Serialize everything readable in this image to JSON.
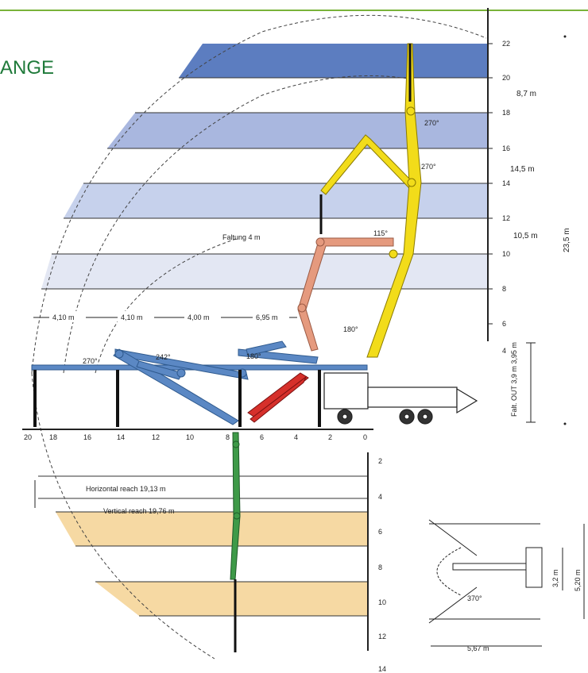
{
  "page": {
    "title": "ANGE"
  },
  "colors": {
    "accent_green_bar": "#79b33a",
    "title_green": "#1f7a3a",
    "band_dark_blue": "#5c7dc0",
    "band_mid_blue": "#a9b7df",
    "band_light_blue": "#d4dcf0",
    "band_faint": "#e6e8f2",
    "band_sand": "#f6d9a3",
    "boom_yellow": "#f2dc1a",
    "boom_salmon": "#e59a7e",
    "boom_blue": "#5b88c4",
    "boom_red": "#d6302b",
    "boom_green": "#3e9a48"
  },
  "height_axis": {
    "ticks": [
      "22",
      "20",
      "18",
      "16",
      "14",
      "12",
      "10",
      "8",
      "6",
      "4"
    ]
  },
  "horizontal_axis": {
    "ticks": [
      "20",
      "18",
      "16",
      "14",
      "12",
      "10",
      "8",
      "6",
      "4",
      "2",
      "0"
    ]
  },
  "depth_axis": {
    "ticks": [
      "2",
      "4",
      "6",
      "8",
      "10",
      "12",
      "14"
    ]
  },
  "dimensions": {
    "seg1": "8,7 m",
    "seg2": "14,5 m",
    "seg3": "10,5 m",
    "total_height": "23,5 m",
    "fold_height": "Faltung 4 m",
    "base_height": "Falt. OUT 3,9 m\n3,95 m",
    "reach1": "4,10 m",
    "reach2": "4,10 m",
    "reach3": "4,00 m",
    "reach4": "6,95 m",
    "horiz_reach": "Horizontal reach 19,13 m",
    "vert_reach": "Vertical reach 19,76 m",
    "outrigger_width": "5,67 m",
    "outrigger_depth_a": "3,2 m",
    "outrigger_depth_b": "5,20 m"
  },
  "angles": {
    "a1": "270°",
    "a2": "270°",
    "a3": "115°",
    "a4": "180°",
    "a5": "270°",
    "a6": "242°",
    "a7": "180°",
    "slew": "370°"
  }
}
